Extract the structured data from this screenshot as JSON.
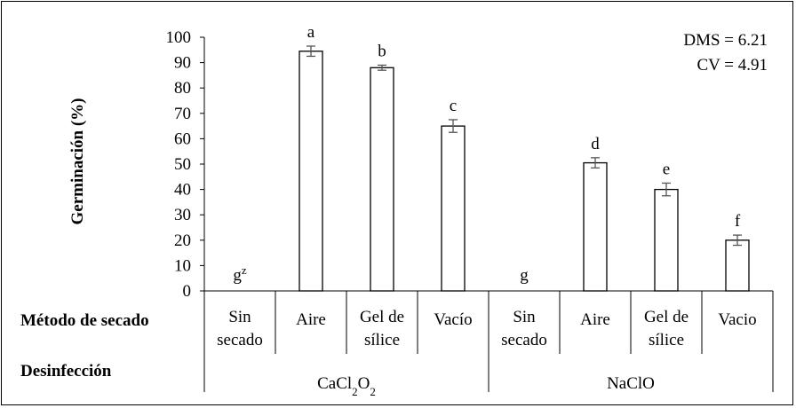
{
  "chart_data": {
    "type": "bar",
    "ylabel": "Germinación (%)",
    "ylim": [
      0,
      100
    ],
    "yticks": [
      0,
      10,
      20,
      30,
      40,
      50,
      60,
      70,
      80,
      90,
      100
    ],
    "row_headers": {
      "method": "Método de secado",
      "disinfection": "Desinfección"
    },
    "groups": [
      {
        "name_parts": [
          "CaCl",
          "2",
          "O",
          "2"
        ],
        "name": "CaCl2O2"
      },
      {
        "name_parts": [
          "NaClO"
        ],
        "name": "NaClO"
      }
    ],
    "categories": [
      {
        "lines": [
          "Sin",
          "secado"
        ],
        "group": 0,
        "value": 0,
        "error": 0,
        "letter": "g",
        "letter_sup": "z"
      },
      {
        "lines": [
          "Aire"
        ],
        "group": 0,
        "value": 94.5,
        "error": 2.0,
        "letter": "a",
        "letter_sup": ""
      },
      {
        "lines": [
          "Gel de",
          "sílice"
        ],
        "group": 0,
        "value": 88.0,
        "error": 1.0,
        "letter": "b",
        "letter_sup": ""
      },
      {
        "lines": [
          "Vacío"
        ],
        "group": 0,
        "value": 65.0,
        "error": 2.5,
        "letter": "c",
        "letter_sup": ""
      },
      {
        "lines": [
          "Sin",
          "secado"
        ],
        "group": 1,
        "value": 0,
        "error": 0,
        "letter": "g",
        "letter_sup": ""
      },
      {
        "lines": [
          "Aire"
        ],
        "group": 1,
        "value": 50.5,
        "error": 2.0,
        "letter": "d",
        "letter_sup": ""
      },
      {
        "lines": [
          "Gel de",
          "sílice"
        ],
        "group": 1,
        "value": 40.0,
        "error": 2.5,
        "letter": "e",
        "letter_sup": ""
      },
      {
        "lines": [
          "Vacio"
        ],
        "group": 1,
        "value": 20.0,
        "error": 2.0,
        "letter": "f",
        "letter_sup": ""
      }
    ],
    "annotations": {
      "dms": "DMS = 6.21",
      "cv": "CV = 4.91"
    },
    "colors": {
      "bar_fill": "#ffffff",
      "bar_stroke": "#000000",
      "error_bar": "#555555"
    }
  }
}
